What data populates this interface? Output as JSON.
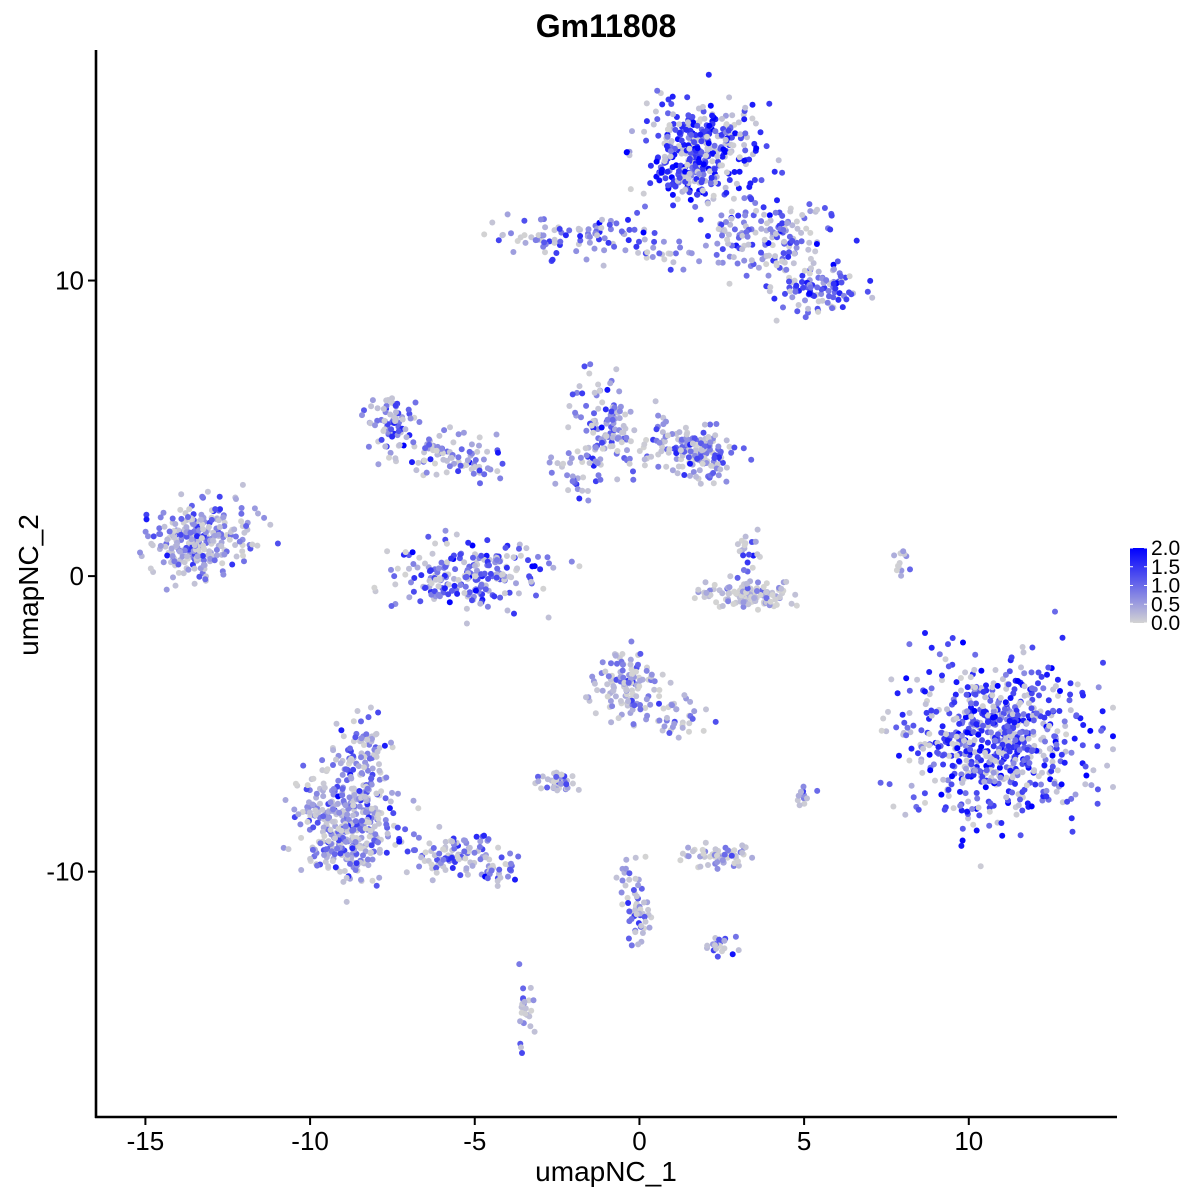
{
  "chart_data": {
    "type": "scatter",
    "title": "Gm11808",
    "xlabel": "umapNC_1",
    "ylabel": "umapNC_2",
    "xlim": [
      -16.5,
      14.5
    ],
    "ylim": [
      -18.3,
      17.8
    ],
    "x_ticks": [
      -15,
      -10,
      -5,
      0,
      5,
      10
    ],
    "x_tick_labels": [
      "-15",
      "-10",
      "-5",
      "0",
      "5",
      "10"
    ],
    "y_ticks": [
      -10,
      0,
      10
    ],
    "y_tick_labels": [
      "-10",
      "0",
      "10"
    ],
    "grid": false,
    "color_scale": {
      "low": "#d3d3d3",
      "high": "#0000ff",
      "min": 0.0,
      "max": 2.0,
      "breaks": [
        0.0,
        0.5,
        1.0,
        1.5,
        2.0
      ],
      "break_labels": [
        "0.0",
        "0.5",
        "1.0",
        "1.5",
        "2.0"
      ],
      "legend_position": "right"
    },
    "clusters": [
      {
        "label": "top-right cluster",
        "x": 1.8,
        "y": 14.3,
        "sx": 0.85,
        "sy": 0.85,
        "n": 380,
        "expr": 1.45
      },
      {
        "label": "top-right arm",
        "x": 4.4,
        "y": 11.3,
        "sx": 0.7,
        "sy": 0.8,
        "n": 110,
        "expr": 1.05
      },
      {
        "label": "top-right tail",
        "x": 5.5,
        "y": 9.7,
        "sx": 0.6,
        "sy": 0.4,
        "n": 90,
        "expr": 1.2
      },
      {
        "label": "top-right stalk",
        "x": 3.0,
        "y": 11.8,
        "sx": 0.6,
        "sy": 0.7,
        "n": 60,
        "expr": 0.8
      },
      {
        "label": "top strip",
        "x": -1.8,
        "y": 11.5,
        "sx": 1.1,
        "sy": 0.3,
        "n": 90,
        "expr": 0.9
      },
      {
        "label": "top strip right",
        "x": 0.8,
        "y": 11.0,
        "sx": 0.9,
        "sy": 0.25,
        "n": 30,
        "expr": 0.85
      },
      {
        "label": "upper-left arc",
        "x": -7.5,
        "y": 5.3,
        "sx": 0.4,
        "sy": 0.5,
        "n": 70,
        "expr": 0.9
      },
      {
        "label": "upper-left arc tail",
        "x": -6.2,
        "y": 4.2,
        "sx": 0.7,
        "sy": 0.35,
        "n": 60,
        "expr": 0.75
      },
      {
        "label": "upper-left arc junction",
        "x": -4.9,
        "y": 3.8,
        "sx": 0.4,
        "sy": 0.3,
        "n": 30,
        "expr": 0.8
      },
      {
        "label": "upper-mid cluster",
        "x": -1.0,
        "y": 5.2,
        "sx": 0.45,
        "sy": 0.8,
        "n": 100,
        "expr": 0.95
      },
      {
        "label": "upper-mid branch",
        "x": 1.0,
        "y": 4.4,
        "sx": 0.9,
        "sy": 0.4,
        "n": 80,
        "expr": 0.65
      },
      {
        "label": "upper-mid lobe",
        "x": 2.0,
        "y": 4.1,
        "sx": 0.5,
        "sy": 0.45,
        "n": 90,
        "expr": 0.9
      },
      {
        "label": "upper-mid trail",
        "x": -1.8,
        "y": 3.6,
        "sx": 0.5,
        "sy": 0.5,
        "n": 40,
        "expr": 0.7
      },
      {
        "label": "cup cluster",
        "x": -5.1,
        "y": 0.0,
        "sx": 1.1,
        "sy": 0.55,
        "n": 230,
        "expr": 0.95
      },
      {
        "label": "left cluster",
        "x": -13.5,
        "y": 1.2,
        "sx": 0.65,
        "sy": 0.6,
        "n": 250,
        "expr": 0.65
      },
      {
        "label": "left cluster spur",
        "x": -12.0,
        "y": 1.6,
        "sx": 0.35,
        "sy": 0.6,
        "n": 25,
        "expr": 0.6
      },
      {
        "label": "mid-right small cluster",
        "x": 3.3,
        "y": -0.6,
        "sx": 0.7,
        "sy": 0.25,
        "n": 120,
        "expr": 0.15
      },
      {
        "label": "mid-right small arm",
        "x": 3.3,
        "y": 0.6,
        "sx": 0.2,
        "sy": 0.5,
        "n": 25,
        "expr": 0.8
      },
      {
        "label": "right cluster",
        "x": 10.8,
        "y": -5.5,
        "sx": 1.3,
        "sy": 1.3,
        "n": 700,
        "expr": 1.35
      },
      {
        "label": "lower-left cluster",
        "x": -8.8,
        "y": -8.4,
        "sx": 0.7,
        "sy": 0.9,
        "n": 380,
        "expr": 0.65
      },
      {
        "label": "lower-left upper arm",
        "x": -8.4,
        "y": -6.1,
        "sx": 0.4,
        "sy": 0.6,
        "n": 80,
        "expr": 0.6
      },
      {
        "label": "lower-left arm",
        "x": -5.6,
        "y": -9.4,
        "sx": 0.75,
        "sy": 0.35,
        "n": 100,
        "expr": 0.75
      },
      {
        "label": "lower-left arm tip",
        "x": -4.3,
        "y": -10.0,
        "sx": 0.3,
        "sy": 0.2,
        "n": 25,
        "expr": 0.9
      },
      {
        "label": "lower-mid cluster",
        "x": -0.4,
        "y": -3.7,
        "sx": 0.45,
        "sy": 0.6,
        "n": 120,
        "expr": 0.55
      },
      {
        "label": "lower-mid tail",
        "x": 1.0,
        "y": -4.6,
        "sx": 0.45,
        "sy": 0.4,
        "n": 40,
        "expr": 0.6
      },
      {
        "label": "lower small cluster",
        "x": -2.5,
        "y": -6.9,
        "sx": 0.35,
        "sy": 0.25,
        "n": 40,
        "expr": 0.5
      },
      {
        "label": "lower-right small cluster",
        "x": 2.4,
        "y": -9.5,
        "sx": 0.5,
        "sy": 0.2,
        "n": 60,
        "expr": 0.35
      },
      {
        "label": "bottom strand",
        "x": 0.0,
        "y": -11.6,
        "sx": 0.2,
        "sy": 0.5,
        "n": 40,
        "expr": 0.8
      },
      {
        "label": "bottom strand upper",
        "x": -0.3,
        "y": -10.3,
        "sx": 0.2,
        "sy": 0.6,
        "n": 20,
        "expr": 0.6
      },
      {
        "label": "bottom-right dots",
        "x": 2.3,
        "y": -12.6,
        "sx": 0.25,
        "sy": 0.2,
        "n": 20,
        "expr": 0.9
      },
      {
        "label": "bottom-left strand",
        "x": -3.5,
        "y": -14.7,
        "sx": 0.15,
        "sy": 0.6,
        "n": 25,
        "expr": 0.8
      },
      {
        "label": "right strand",
        "x": 7.9,
        "y": 0.2,
        "sx": 0.1,
        "sy": 0.4,
        "n": 12,
        "expr": 0.5
      },
      {
        "label": "right dots",
        "x": 5.0,
        "y": -7.4,
        "sx": 0.2,
        "sy": 0.25,
        "n": 12,
        "expr": 0.6
      }
    ]
  }
}
